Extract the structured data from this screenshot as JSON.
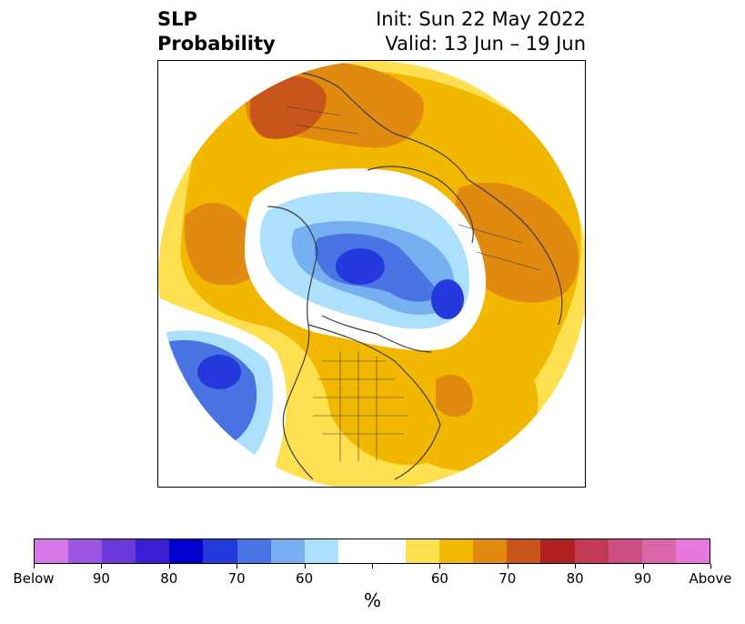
{
  "title": {
    "left_line1": "SLP",
    "left_line2": "Probability",
    "right_line1": "Init: Sun 22 May 2022",
    "right_line2": "Valid: 13 Jun – 19 Jun"
  },
  "map": {
    "projection": "north-polar stereographic",
    "region": "Northern Hemisphere",
    "features": [
      "coastlines",
      "country borders",
      "US state borders"
    ]
  },
  "colorbar": {
    "unit": "%",
    "colors": [
      "#d677e8",
      "#9a56e0",
      "#6a39d8",
      "#3a1ed4",
      "#0000cc",
      "#2438dc",
      "#4a74e4",
      "#76b0f0",
      "#ace0fc",
      "#ffffff",
      "#ffffff",
      "#ffe050",
      "#f2b800",
      "#e08a10",
      "#c8561a",
      "#b02020",
      "#c23a54",
      "#cc4e82",
      "#d866a8",
      "#e678de"
    ],
    "tick_labels": [
      "Below",
      "90",
      "80",
      "70",
      "60",
      "",
      "60",
      "70",
      "80",
      "90",
      "Above"
    ]
  },
  "chart_data": {
    "type": "heatmap",
    "title": "SLP Probability",
    "subtitle": "Init: Sun 22 May 2022 / Valid: 13 Jun – 19 Jun",
    "colorbar_label": "%",
    "below_normal_levels": [
      "Below",
      "90",
      "80",
      "70",
      "60"
    ],
    "above_normal_levels": [
      "60",
      "70",
      "80",
      "90",
      "Above"
    ]
  }
}
